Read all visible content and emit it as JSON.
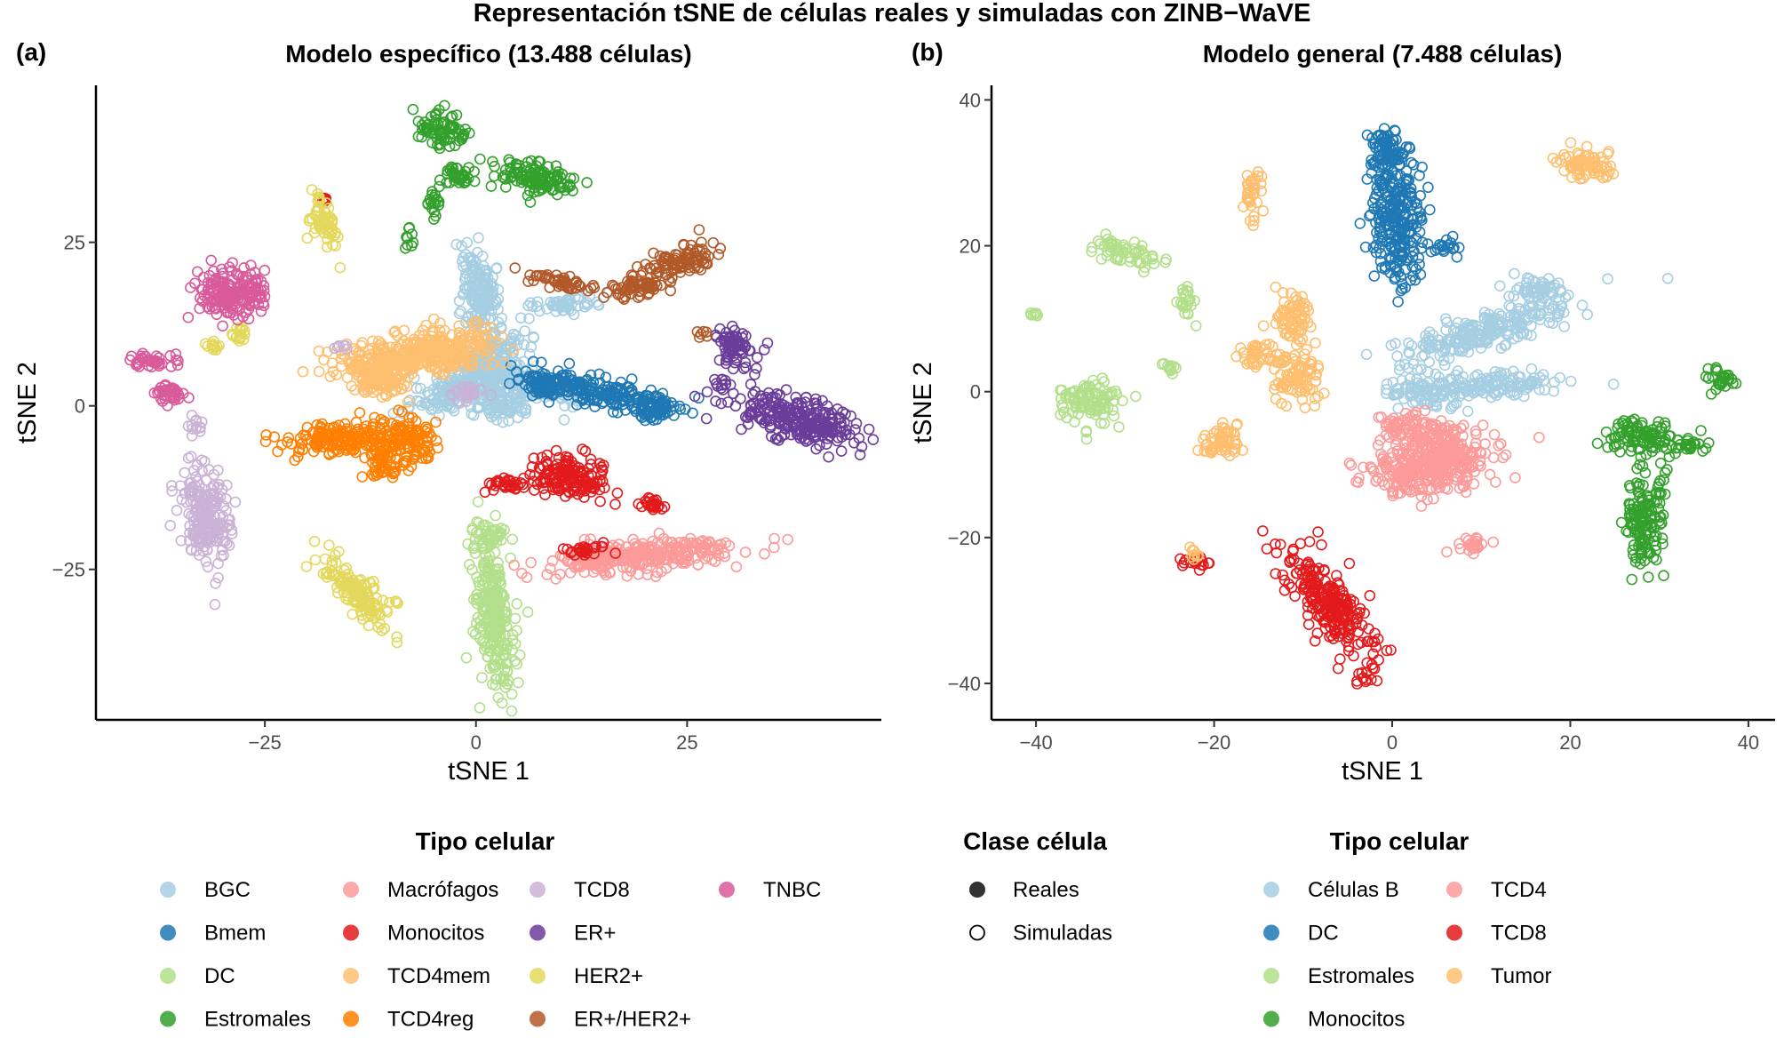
{
  "figure": {
    "suptitle": "Representación tSNE de células reales y simuladas con ZINB−WaVE"
  },
  "chart_data": [
    {
      "tag": "(a)",
      "type": "scatter",
      "title": "Modelo específico (13.488 células)",
      "xlabel": "tSNE 1",
      "ylabel": "tSNE 2",
      "xlim": [
        -45,
        48
      ],
      "ylim": [
        -48,
        49
      ],
      "xticks": [
        -25,
        0,
        25
      ],
      "xtick_labels": [
        "−25",
        "0",
        "25"
      ],
      "yticks": [
        -25,
        0,
        25
      ],
      "ytick_labels": [
        "−25",
        "0",
        "25"
      ],
      "grid": false,
      "legend_position": "bottom",
      "legend": {
        "title": "Tipo celular",
        "columns": [
          [
            "BGC",
            "Bmem",
            "DC",
            "Estromales"
          ],
          [
            "Macrófagos",
            "Monocitos",
            "TCD4mem",
            "TCD4reg"
          ],
          [
            "TCD8",
            "ER+",
            "HER2+",
            "ER+/HER2+"
          ],
          [
            "TNBC"
          ]
        ]
      },
      "series": [
        {
          "name": "BGC",
          "color": "#a6cee3",
          "clusters": [
            [
              0.5,
              17,
              2,
              7,
              0.1
            ],
            [
              1,
              6,
              6,
              3,
              0.8
            ],
            [
              -3,
              2,
              5,
              2,
              0.5
            ],
            [
              6,
              3,
              6,
              2,
              -0.3
            ],
            [
              10,
              15.5,
              4,
              1,
              0.1
            ],
            [
              3,
              0,
              3,
              2,
              0
            ]
          ]
        },
        {
          "name": "Bmem",
          "color": "#1f78b4",
          "clusters": [
            [
              15,
              2,
              8,
              2,
              -0.25
            ],
            [
              8,
              3,
              3,
              2,
              -0.2
            ],
            [
              21,
              -0.5,
              3,
              1.5,
              0
            ]
          ]
        },
        {
          "name": "DC",
          "color": "#b2df8a",
          "clusters": [
            [
              2,
              -32,
              2,
              11,
              0.1
            ],
            [
              1.5,
              -20,
              2,
              2,
              0
            ]
          ]
        },
        {
          "name": "Estromales",
          "color": "#33a02c",
          "clusters": [
            [
              -4,
              42,
              2.5,
              2.5,
              -0.5
            ],
            [
              -2,
              35,
              1.5,
              2,
              0.6
            ],
            [
              -5,
              31,
              0.8,
              2,
              0
            ],
            [
              -8,
              25,
              0.5,
              1.5,
              0
            ],
            [
              7,
              35,
              5,
              2,
              -0.25
            ]
          ]
        },
        {
          "name": "Macrófagos",
          "color": "#fb9a99",
          "clusters": [
            [
              20,
              -23,
              10,
              2.2,
              0.12
            ],
            [
              14,
              -23,
              3,
              1.5,
              0.1
            ]
          ]
        },
        {
          "name": "Monocitos",
          "color": "#e31a1c",
          "clusters": [
            [
              11,
              -11,
              4,
              3,
              -0.15
            ],
            [
              4,
              -12,
              3,
              1,
              0
            ],
            [
              21,
              -15,
              2,
              1,
              0
            ],
            [
              13,
              -22,
              3,
              0.7,
              0
            ],
            [
              -18,
              31.5,
              0.4,
              0.4,
              0
            ]
          ]
        },
        {
          "name": "TCD4mem",
          "color": "#fdbf6f",
          "clusters": [
            [
              -10,
              7,
              7,
              3,
              0.2
            ],
            [
              -3,
              9,
              5,
              3,
              0.1
            ],
            [
              -11,
              4,
              3,
              2,
              0
            ]
          ]
        },
        {
          "name": "TCD4reg",
          "color": "#ff7f00",
          "clusters": [
            [
              -16,
              -5,
              6,
              2.3,
              0.05
            ],
            [
              -8,
              -5,
              3,
              3,
              0.7
            ],
            [
              -11,
              -9,
              2,
              2,
              0
            ]
          ]
        },
        {
          "name": "TCD8",
          "color": "#cab2d6",
          "clusters": [
            [
              -32,
              -17,
              2.5,
              7,
              0.1
            ],
            [
              -33,
              -3,
              1,
              1,
              0
            ],
            [
              -1,
              2,
              2,
              1,
              0
            ],
            [
              -16,
              9,
              1,
              0.5,
              0
            ]
          ]
        },
        {
          "name": "ER+",
          "color": "#6a3d9a",
          "clusters": [
            [
              38,
              -2,
              7,
              3,
              -0.3
            ],
            [
              31,
              9,
              2,
              3,
              0.6
            ],
            [
              29,
              3,
              1,
              1,
              0
            ]
          ]
        },
        {
          "name": "HER2+",
          "color": "#e3d85c",
          "clusters": [
            [
              -14,
              -28.5,
              2,
              6,
              0.6
            ],
            [
              -18,
              28,
              1.2,
              4,
              0.3
            ],
            [
              -31,
              9,
              1,
              1,
              0
            ],
            [
              -28,
              11,
              1,
              1.5,
              0
            ]
          ]
        },
        {
          "name": "ER+/HER2+",
          "color": "#b15928",
          "clusters": [
            [
              24,
              22,
              4,
              2,
              0.5
            ],
            [
              19,
              18,
              3,
              1.5,
              0.2
            ],
            [
              10,
              19,
              4,
              1,
              -0.3
            ],
            [
              27,
              11,
              0.5,
              0.5,
              0
            ]
          ]
        },
        {
          "name": "TNBC",
          "color": "#d95a9a",
          "clusters": [
            [
              -30,
              17,
              3,
              3.5,
              0
            ],
            [
              -26.5,
              17,
              2,
              2.5,
              0
            ],
            [
              -38,
              7,
              3,
              1,
              0
            ],
            [
              -36,
              2,
              2,
              1.5,
              0
            ]
          ]
        }
      ]
    },
    {
      "tag": "(b)",
      "type": "scatter",
      "title": "Modelo general (7.488 células)",
      "xlabel": "tSNE 1",
      "ylabel": "tSNE 2",
      "xlim": [
        -45,
        43
      ],
      "ylim": [
        -45,
        42
      ],
      "xticks": [
        -40,
        -20,
        0,
        20,
        40
      ],
      "xtick_labels": [
        "−40",
        "−20",
        "0",
        "20",
        "40"
      ],
      "yticks": [
        -40,
        -20,
        0,
        20,
        40
      ],
      "ytick_labels": [
        "−40",
        "−20",
        "0",
        "20",
        "40"
      ],
      "grid": false,
      "legend_position": "bottom",
      "legend_class": {
        "title": "Clase célula",
        "items": [
          "Reales",
          "Simuladas"
        ]
      },
      "legend": {
        "title": "Tipo celular",
        "columns": [
          [
            "Células B",
            "DC",
            "Estromales",
            "Monocitos"
          ],
          [
            "TCD4",
            "TCD8",
            "Tumor"
          ]
        ]
      },
      "series": [
        {
          "name": "Células B",
          "color": "#a6cee3",
          "clusters": [
            [
              10,
              8,
              9,
              2.2,
              0.35
            ],
            [
              12,
              1,
              6,
              1.5,
              0
            ],
            [
              4,
              0,
              4,
              2,
              0
            ],
            [
              17,
              14,
              3,
              1.5,
              0
            ]
          ]
        },
        {
          "name": "DC",
          "color": "#1f78b4",
          "clusters": [
            [
              0.5,
              24,
              2.5,
              9,
              0.05
            ],
            [
              -1,
              33,
              1.5,
              3,
              0
            ],
            [
              6,
              20,
              1.5,
              1,
              0
            ]
          ]
        },
        {
          "name": "Estromales",
          "color": "#b2df8a",
          "clusters": [
            [
              -34,
              -1,
              3.5,
              2.5,
              0
            ],
            [
              -30,
              19,
              3.5,
              1.5,
              -0.3
            ],
            [
              -23,
              12,
              1,
              2,
              0
            ],
            [
              -25,
              3.5,
              1,
              1,
              0
            ],
            [
              -40,
              10.5,
              1,
              0.7,
              0
            ]
          ]
        },
        {
          "name": "Monocitos",
          "color": "#33a02c",
          "clusters": [
            [
              28.5,
              -17,
              2,
              6,
              0
            ],
            [
              28,
              -6,
              4,
              2,
              0
            ],
            [
              37,
              1.5,
              1.5,
              1.5,
              0
            ],
            [
              33,
              -7,
              2,
              1,
              0
            ]
          ]
        },
        {
          "name": "TCD4",
          "color": "#fb9a99",
          "clusters": [
            [
              3,
              -11,
              6,
              3,
              0
            ],
            [
              6,
              -8,
              5,
              3,
              0
            ],
            [
              2,
              -5,
              3,
              2,
              0
            ],
            [
              9,
              -21,
              2,
              1,
              0
            ]
          ]
        },
        {
          "name": "TCD8",
          "color": "#e31a1c",
          "clusters": [
            [
              -7,
              -29,
              2.5,
              8,
              0.55
            ],
            [
              -22,
              -23.5,
              1.5,
              1,
              0
            ],
            [
              -3,
              -39,
              1,
              1,
              0
            ]
          ]
        },
        {
          "name": "Tumor",
          "color": "#fdbf6f",
          "clusters": [
            [
              22,
              31,
              3.5,
              1.8,
              -0.35
            ],
            [
              -15.5,
              27.5,
              1,
              3,
              0
            ],
            [
              -11,
              10,
              2,
              3,
              0
            ],
            [
              -11,
              2,
              2.5,
              3,
              0
            ],
            [
              -15,
              5,
              2,
              1.5,
              0
            ],
            [
              -19,
              -7,
              2.5,
              2,
              0.6
            ],
            [
              -22,
              -22.5,
              0.8,
              1,
              0
            ]
          ]
        }
      ]
    }
  ]
}
